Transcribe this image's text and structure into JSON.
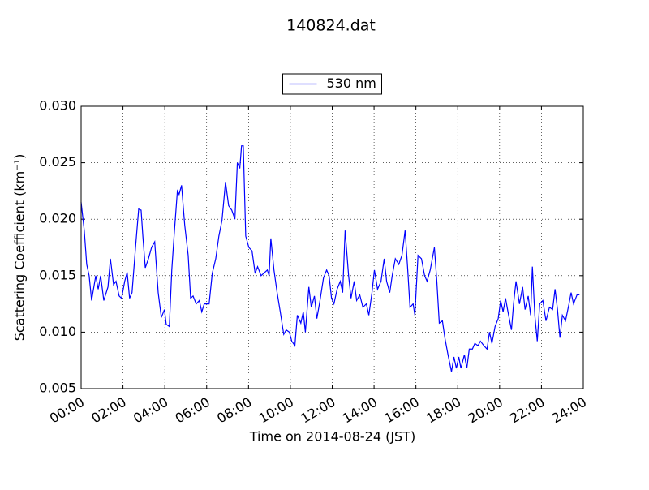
{
  "chart_data": {
    "type": "line",
    "title": "140824.dat",
    "xlabel": "Time on 2014-08-24 (JST)",
    "ylabel": "Scattering Coefficient (km⁻¹)",
    "x": [
      "00:00",
      "00:09",
      "00:16",
      "00:23",
      "00:30",
      "00:42",
      "00:49",
      "00:56",
      "01:05",
      "01:17",
      "01:24",
      "01:33",
      "01:40",
      "01:49",
      "01:56",
      "02:05",
      "02:12",
      "02:19",
      "02:26",
      "02:36",
      "02:45",
      "02:52",
      "02:57",
      "03:04",
      "03:13",
      "03:22",
      "03:31",
      "03:41",
      "03:50",
      "03:59",
      "04:04",
      "04:13",
      "04:20",
      "04:27",
      "04:36",
      "04:41",
      "04:48",
      "04:57",
      "05:07",
      "05:14",
      "05:21",
      "05:30",
      "05:39",
      "05:46",
      "05:53",
      "06:07",
      "06:16",
      "06:26",
      "06:35",
      "06:44",
      "06:54",
      "07:03",
      "07:12",
      "07:21",
      "07:28",
      "07:35",
      "07:40",
      "07:45",
      "07:52",
      "08:01",
      "08:10",
      "08:19",
      "08:26",
      "08:36",
      "08:54",
      "08:59",
      "09:04",
      "09:13",
      "09:22",
      "09:31",
      "09:41",
      "09:48",
      "09:57",
      "10:04",
      "10:13",
      "10:20",
      "10:30",
      "10:37",
      "10:43",
      "10:53",
      "11:00",
      "11:09",
      "11:16",
      "11:25",
      "11:35",
      "11:44",
      "11:51",
      "11:58",
      "12:05",
      "12:14",
      "12:23",
      "12:30",
      "12:37",
      "12:47",
      "12:54",
      "13:03",
      "13:10",
      "13:19",
      "13:28",
      "13:38",
      "13:45",
      "13:54",
      "14:01",
      "14:10",
      "14:20",
      "14:29",
      "14:36",
      "14:45",
      "14:52",
      "15:01",
      "15:11",
      "15:20",
      "15:29",
      "15:36",
      "15:43",
      "15:52",
      "15:57",
      "16:06",
      "16:16",
      "16:25",
      "16:32",
      "16:41",
      "16:53",
      "17:00",
      "17:07",
      "17:16",
      "17:23",
      "17:32",
      "17:42",
      "17:49",
      "17:56",
      "18:03",
      "18:09",
      "18:19",
      "18:26",
      "18:33",
      "18:42",
      "18:49",
      "18:58",
      "19:05",
      "19:15",
      "19:24",
      "19:31",
      "19:38",
      "19:47",
      "19:56",
      "20:03",
      "20:10",
      "20:17",
      "20:24",
      "20:34",
      "20:40",
      "20:47",
      "20:57",
      "21:06",
      "21:13",
      "21:22",
      "21:29",
      "21:34",
      "21:41",
      "21:48",
      "21:55",
      "22:04",
      "22:13",
      "22:23",
      "22:32",
      "22:39",
      "22:46",
      "22:53",
      "23:00",
      "23:09",
      "23:19",
      "23:25",
      "23:32",
      "23:42",
      "23:49"
    ],
    "series": [
      {
        "name": "530 nm",
        "color": "#0000ff",
        "values": [
          0.0215,
          0.019,
          0.016,
          0.015,
          0.0128,
          0.015,
          0.0138,
          0.015,
          0.0128,
          0.014,
          0.0165,
          0.0142,
          0.0145,
          0.0132,
          0.013,
          0.0145,
          0.0153,
          0.013,
          0.0135,
          0.0175,
          0.0209,
          0.0208,
          0.0185,
          0.0157,
          0.0165,
          0.0175,
          0.018,
          0.0135,
          0.0113,
          0.012,
          0.0107,
          0.0105,
          0.0155,
          0.0187,
          0.0225,
          0.0222,
          0.023,
          0.0195,
          0.0168,
          0.013,
          0.0132,
          0.0125,
          0.0128,
          0.0118,
          0.0125,
          0.0125,
          0.0152,
          0.0165,
          0.0185,
          0.0199,
          0.0233,
          0.0212,
          0.0208,
          0.02,
          0.025,
          0.0245,
          0.0265,
          0.0265,
          0.0185,
          0.0175,
          0.0172,
          0.0152,
          0.0158,
          0.015,
          0.0155,
          0.015,
          0.0183,
          0.0155,
          0.0135,
          0.0118,
          0.0098,
          0.0102,
          0.01,
          0.0092,
          0.0088,
          0.0115,
          0.0108,
          0.0118,
          0.01,
          0.014,
          0.0122,
          0.0132,
          0.0112,
          0.0128,
          0.0148,
          0.0155,
          0.015,
          0.013,
          0.0125,
          0.0138,
          0.0145,
          0.0135,
          0.019,
          0.015,
          0.013,
          0.0145,
          0.0128,
          0.0133,
          0.0122,
          0.0125,
          0.0115,
          0.0135,
          0.0155,
          0.0138,
          0.0145,
          0.0165,
          0.0145,
          0.0135,
          0.015,
          0.0165,
          0.016,
          0.0168,
          0.019,
          0.0158,
          0.0122,
          0.0125,
          0.0115,
          0.0168,
          0.0165,
          0.015,
          0.0145,
          0.0155,
          0.0175,
          0.0145,
          0.0108,
          0.011,
          0.0095,
          0.008,
          0.0065,
          0.0078,
          0.0068,
          0.0078,
          0.0068,
          0.008,
          0.0068,
          0.0085,
          0.0085,
          0.009,
          0.0088,
          0.0092,
          0.0088,
          0.0085,
          0.01,
          0.009,
          0.0105,
          0.0112,
          0.0128,
          0.0118,
          0.013,
          0.0118,
          0.0102,
          0.0125,
          0.0145,
          0.0125,
          0.014,
          0.012,
          0.0132,
          0.0115,
          0.0158,
          0.0115,
          0.0092,
          0.0125,
          0.0128,
          0.011,
          0.0122,
          0.012,
          0.0138,
          0.012,
          0.0095,
          0.0115,
          0.011,
          0.0125,
          0.0135,
          0.0125,
          0.0133,
          0.0133
        ]
      }
    ],
    "xlim": [
      "00:00",
      "24:00"
    ],
    "xticks": [
      "00:00",
      "02:00",
      "04:00",
      "06:00",
      "08:00",
      "10:00",
      "12:00",
      "14:00",
      "16:00",
      "18:00",
      "20:00",
      "22:00",
      "24:00"
    ],
    "ylim": [
      0.005,
      0.03
    ],
    "yticks": [
      0.005,
      {
        "value": 0.01,
        "label": "0.010"
      },
      0.015,
      {
        "value": 0.02,
        "label": "0.020"
      },
      0.025,
      {
        "value": 0.03,
        "label": "0.030"
      }
    ],
    "grid": true,
    "legend": "upper center"
  }
}
